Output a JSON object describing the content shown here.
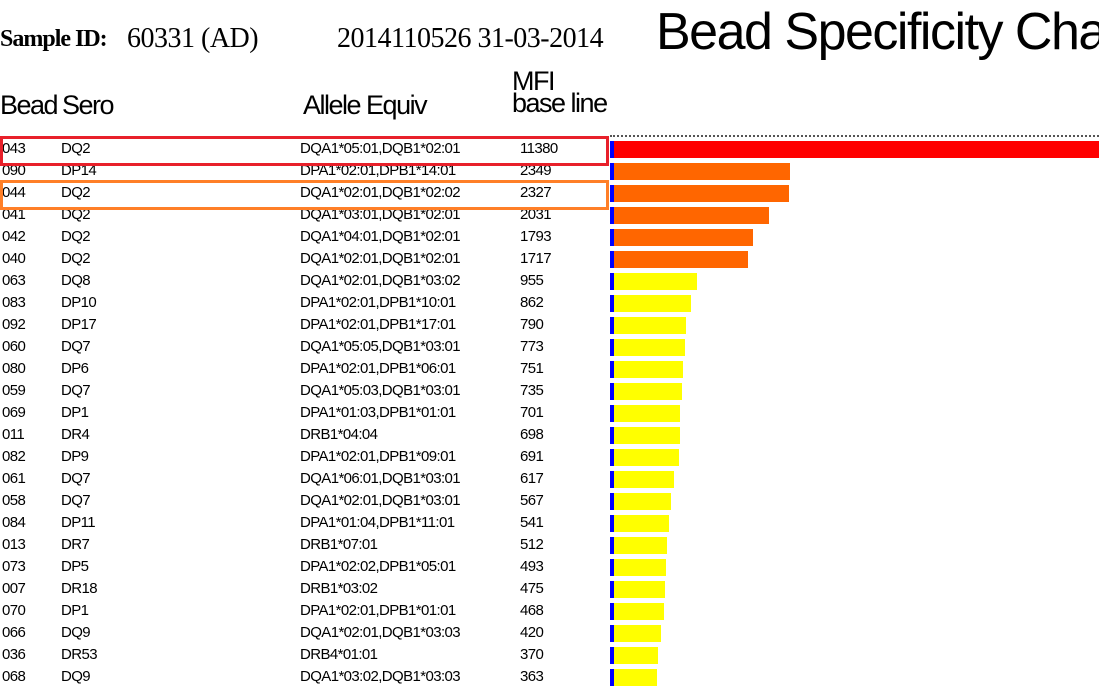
{
  "header": {
    "sample_label": "Sample ID:",
    "sample_value": "60331 (AD)",
    "run_info": "2014110526 31-03-2014",
    "title": "Bead Specificity Chart"
  },
  "columns": {
    "bead": "Bead",
    "sero": "Sero",
    "allele": "Allele Equiv",
    "mfi_line1": "MFI",
    "mfi_line2": "base line"
  },
  "colors": {
    "high": "#ff0000",
    "medium": "#ff6600",
    "low": "#ffff00",
    "baseline": "#0000ff",
    "highlight_red": "#e8202a",
    "highlight_orange": "#ff7f27"
  },
  "highlighted_rows": [
    {
      "index": 0,
      "color": "#e8202a"
    },
    {
      "index": 2,
      "color": "#ff7f27"
    }
  ],
  "chart_data": {
    "type": "bar",
    "title": "Bead Specificity Chart",
    "orientation": "horizontal",
    "rows": [
      {
        "bead": "043",
        "sero": "DQ2",
        "allele": "DQA1*05:01,DQB1*02:01",
        "mfi": "11380",
        "level": "high"
      },
      {
        "bead": "090",
        "sero": "DP14",
        "allele": "DPA1*02:01,DPB1*14:01",
        "mfi": "2349",
        "level": "medium"
      },
      {
        "bead": "044",
        "sero": "DQ2",
        "allele": "DQA1*02:01,DQB1*02:02",
        "mfi": "2327",
        "level": "medium"
      },
      {
        "bead": "041",
        "sero": "DQ2",
        "allele": "DQA1*03:01,DQB1*02:01",
        "mfi": "2031",
        "level": "medium"
      },
      {
        "bead": "042",
        "sero": "DQ2",
        "allele": "DQA1*04:01,DQB1*02:01",
        "mfi": "1793",
        "level": "medium"
      },
      {
        "bead": "040",
        "sero": "DQ2",
        "allele": "DQA1*02:01,DQB1*02:01",
        "mfi": "1717",
        "level": "medium"
      },
      {
        "bead": "063",
        "sero": "DQ8",
        "allele": "DQA1*02:01,DQB1*03:02",
        "mfi": "955",
        "level": "low"
      },
      {
        "bead": "083",
        "sero": "DP10",
        "allele": "DPA1*02:01,DPB1*10:01",
        "mfi": "862",
        "level": "low"
      },
      {
        "bead": "092",
        "sero": "DP17",
        "allele": "DPA1*02:01,DPB1*17:01",
        "mfi": "790",
        "level": "low"
      },
      {
        "bead": "060",
        "sero": "DQ7",
        "allele": "DQA1*05:05,DQB1*03:01",
        "mfi": "773",
        "level": "low"
      },
      {
        "bead": "080",
        "sero": "DP6",
        "allele": "DPA1*02:01,DPB1*06:01",
        "mfi": "751",
        "level": "low"
      },
      {
        "bead": "059",
        "sero": "DQ7",
        "allele": "DQA1*05:03,DQB1*03:01",
        "mfi": "735",
        "level": "low"
      },
      {
        "bead": "069",
        "sero": "DP1",
        "allele": "DPA1*01:03,DPB1*01:01",
        "mfi": "701",
        "level": "low"
      },
      {
        "bead": "011",
        "sero": "DR4",
        "allele": "DRB1*04:04",
        "mfi": "698",
        "level": "low"
      },
      {
        "bead": "082",
        "sero": "DP9",
        "allele": "DPA1*02:01,DPB1*09:01",
        "mfi": "691",
        "level": "low"
      },
      {
        "bead": "061",
        "sero": "DQ7",
        "allele": "DQA1*06:01,DQB1*03:01",
        "mfi": "617",
        "level": "low"
      },
      {
        "bead": "058",
        "sero": "DQ7",
        "allele": "DQA1*02:01,DQB1*03:01",
        "mfi": "567",
        "level": "low"
      },
      {
        "bead": "084",
        "sero": "DP11",
        "allele": "DPA1*01:04,DPB1*11:01",
        "mfi": "541",
        "level": "low"
      },
      {
        "bead": "013",
        "sero": "DR7",
        "allele": "DRB1*07:01",
        "mfi": "512",
        "level": "low"
      },
      {
        "bead": "073",
        "sero": "DP5",
        "allele": "DPA1*02:02,DPB1*05:01",
        "mfi": "493",
        "level": "low"
      },
      {
        "bead": "007",
        "sero": "DR18",
        "allele": "DRB1*03:02",
        "mfi": "475",
        "level": "low"
      },
      {
        "bead": "070",
        "sero": "DP1",
        "allele": "DPA1*02:01,DPB1*01:01",
        "mfi": "468",
        "level": "low"
      },
      {
        "bead": "066",
        "sero": "DQ9",
        "allele": "DQA1*02:01,DQB1*03:03",
        "mfi": "420",
        "level": "low"
      },
      {
        "bead": "036",
        "sero": "DR53",
        "allele": "DRB4*01:01",
        "mfi": "370",
        "level": "low"
      },
      {
        "bead": "068",
        "sero": "DQ9",
        "allele": "DQA1*03:02,DQB1*03:03",
        "mfi": "363",
        "level": "low"
      }
    ]
  }
}
